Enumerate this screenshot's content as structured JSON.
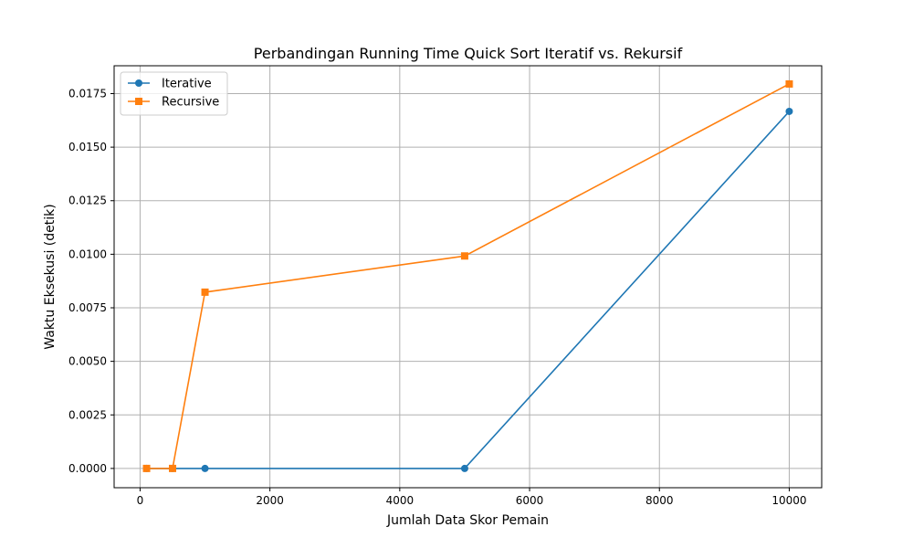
{
  "chart_data": {
    "type": "line",
    "title": "Perbandingan Running Time Quick Sort Iteratif vs. Rekursif",
    "xlabel": "Jumlah Data Skor Pemain",
    "ylabel": "Waktu Eksekusi (detik)",
    "xlim": [
      -400,
      10500
    ],
    "ylim": [
      -0.0009,
      0.0188
    ],
    "xticks": [
      0,
      2000,
      4000,
      6000,
      8000,
      10000
    ],
    "xtick_labels": [
      "0",
      "2000",
      "4000",
      "6000",
      "8000",
      "10000"
    ],
    "yticks": [
      0,
      0.0025,
      0.005,
      0.0075,
      0.01,
      0.0125,
      0.015,
      0.0175
    ],
    "ytick_labels": [
      "0.0000",
      "0.0025",
      "0.0050",
      "0.0075",
      "0.0100",
      "0.0125",
      "0.0150",
      "0.0175"
    ],
    "grid": true,
    "legend_position": "top-left",
    "series": [
      {
        "name": "Iterative",
        "color": "#1f77b4",
        "marker": "circle",
        "x": [
          100,
          500,
          1000,
          5000,
          10000
        ],
        "y": [
          0.0,
          0.0,
          0.0,
          0.0,
          0.01667
        ]
      },
      {
        "name": "Recursive",
        "color": "#ff7f0e",
        "marker": "square",
        "x": [
          100,
          500,
          1000,
          5000,
          10000
        ],
        "y": [
          0.0,
          0.0,
          0.00823,
          0.00992,
          0.01795
        ]
      }
    ]
  }
}
